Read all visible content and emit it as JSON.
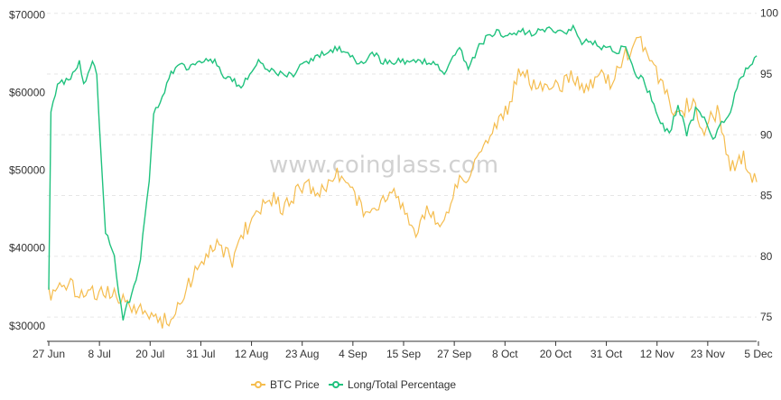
{
  "watermark": "www.coinglass.com",
  "colors": {
    "btc": "#f5bd4f",
    "long": "#20c27e",
    "grid": "#e6e6e6",
    "axis": "#333333"
  },
  "chart_data": {
    "type": "line",
    "x_labels": [
      "27 Jun",
      "8 Jul",
      "20 Jul",
      "31 Jul",
      "12 Aug",
      "23 Aug",
      "4 Sep",
      "15 Sep",
      "27 Sep",
      "8 Oct",
      "20 Oct",
      "31 Oct",
      "12 Nov",
      "23 Nov",
      "5 Dec"
    ],
    "y_left": {
      "ticks": [
        "$30000",
        "$40000",
        "$50000",
        "$60000",
        "$70000"
      ],
      "tick_values": [
        30000,
        40000,
        50000,
        60000,
        70000
      ],
      "range": [
        28000,
        71000
      ]
    },
    "y_right": {
      "ticks": [
        "75",
        "80",
        "85",
        "90",
        "95",
        "100"
      ],
      "tick_values": [
        75,
        80,
        85,
        90,
        95,
        100
      ],
      "range": [
        73,
        100.5
      ]
    },
    "grid": "horizontal dashed",
    "legend_position": "bottom-center",
    "series": [
      {
        "name": "BTC Price",
        "axis": "left",
        "x": [
          0,
          3,
          6,
          9,
          12,
          15,
          18,
          21,
          24,
          27,
          30,
          33,
          36,
          39,
          42,
          45,
          48,
          51,
          54,
          57,
          60,
          63,
          66,
          69,
          72,
          75,
          78,
          81,
          84,
          87,
          90,
          93,
          96,
          99,
          102,
          105,
          108,
          111,
          114,
          117,
          120,
          123,
          126,
          129,
          132,
          135,
          138,
          141,
          144,
          147,
          150,
          153,
          156,
          159,
          162
        ],
        "values": [
          34000,
          35500,
          34800,
          34000,
          34500,
          33800,
          32800,
          32000,
          31000,
          30500,
          32500,
          36500,
          39000,
          40500,
          38500,
          42500,
          44500,
          46500,
          45000,
          47500,
          48000,
          47000,
          49500,
          48500,
          44500,
          45500,
          47500,
          45000,
          42500,
          45000,
          42500,
          48000,
          49500,
          53000,
          55000,
          58000,
          63000,
          61000,
          61500,
          61000,
          62000,
          60000,
          62500,
          61000,
          65000,
          66500,
          64500,
          60000,
          57000,
          59000,
          55500,
          57500,
          50000,
          51500,
          48500
        ]
      },
      {
        "name": "Long/Total Percentage",
        "axis": "right",
        "x": [
          0,
          0.5,
          1,
          2,
          4,
          6,
          7,
          8,
          10,
          11,
          12,
          13,
          15,
          16,
          17,
          18,
          20,
          21,
          22,
          23,
          24,
          26,
          28,
          30,
          32,
          33,
          35,
          38,
          40,
          44,
          48,
          52,
          56,
          58,
          60,
          64,
          68,
          70,
          72,
          74,
          76,
          80,
          84,
          88,
          90,
          94,
          96,
          98,
          100,
          102,
          104,
          106,
          108,
          110,
          112,
          114,
          116,
          118,
          120,
          122,
          124,
          126,
          128,
          130,
          132,
          134,
          136,
          138,
          140,
          142,
          144,
          146,
          148,
          150,
          152,
          154,
          156,
          158,
          160,
          162
        ],
        "values": [
          77,
          92,
          93,
          94,
          94.5,
          95,
          96,
          94,
          96,
          95,
          88,
          82,
          80,
          77,
          75,
          76,
          78,
          80,
          83,
          86,
          92,
          93,
          95,
          96,
          95.5,
          96,
          96,
          96,
          95,
          94,
          96,
          95,
          95,
          96,
          96,
          97,
          97,
          96,
          96,
          97,
          96,
          96,
          96,
          96,
          95,
          97,
          95.5,
          97,
          98,
          98.5,
          98.3,
          98,
          98.5,
          98.3,
          98.5,
          98.7,
          98.5,
          98.2,
          98.7,
          97.5,
          97.8,
          97.2,
          97.3,
          96.8,
          97.5,
          95,
          94.5,
          93,
          91,
          90,
          92.5,
          90,
          92,
          91.5,
          89.5,
          91,
          92,
          94.5,
          95.5,
          96.5
        ]
      }
    ]
  },
  "legend": {
    "btc_label": "BTC Price",
    "long_label": "Long/Total Percentage"
  }
}
